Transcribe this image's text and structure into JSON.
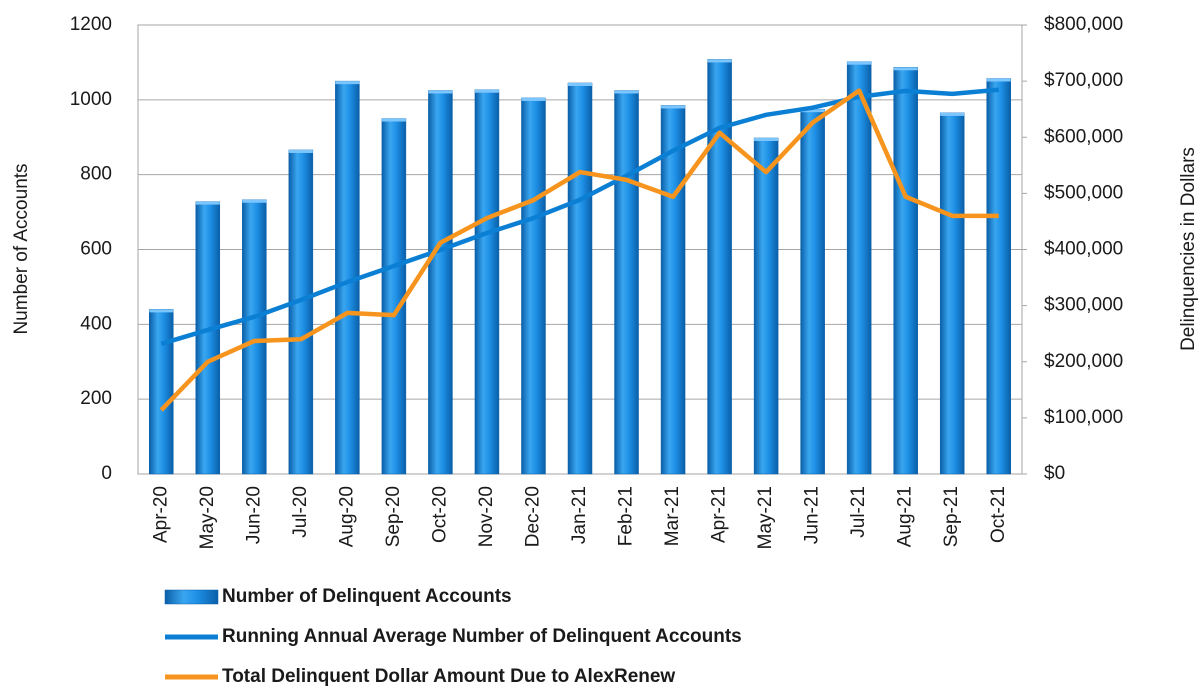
{
  "chart_data": {
    "type": "bar",
    "categories": [
      "Apr-20",
      "May-20",
      "Jun-20",
      "Jul-20",
      "Aug-20",
      "Sep-20",
      "Oct-20",
      "Nov-20",
      "Dec-20",
      "Jan-21",
      "Feb-21",
      "Mar-21",
      "Apr-21",
      "May-21",
      "Jun-21",
      "Jul-21",
      "Aug-21",
      "Sep-21",
      "Oct-21"
    ],
    "ylabel": "Number of Accounts",
    "y2label": "Delinquencies in Dollars",
    "ylim": [
      0,
      1200
    ],
    "yticks": [
      0,
      200,
      400,
      600,
      800,
      1000,
      1200
    ],
    "y2lim": [
      0,
      800000
    ],
    "y2ticks": [
      {
        "value": 0,
        "label": "$0"
      },
      {
        "value": 100000,
        "label": "$100,000"
      },
      {
        "value": 200000,
        "label": "$200,000"
      },
      {
        "value": 300000,
        "label": "$300,000"
      },
      {
        "value": 400000,
        "label": "$400,000"
      },
      {
        "value": 500000,
        "label": "$500,000"
      },
      {
        "value": 600000,
        "label": "$600,000"
      },
      {
        "value": 700000,
        "label": "$700,000"
      },
      {
        "value": 800000,
        "label": "$800,000"
      }
    ],
    "grid": true,
    "series": [
      {
        "name": "Number of Delinquent Accounts",
        "type": "bar",
        "color": "#1e90e6",
        "values": [
          440,
          728,
          733,
          866,
          1050,
          950,
          1025,
          1027,
          1005,
          1045,
          1025,
          985,
          1108,
          898,
          975,
          1102,
          1087,
          965,
          1057
        ]
      },
      {
        "name": "Running Annual Average Number of Delinquent Accounts",
        "type": "line",
        "color": "#0b7fd4",
        "values": [
          348,
          385,
          420,
          465,
          513,
          556,
          599,
          644,
          684,
          733,
          797,
          864,
          925,
          960,
          979,
          1008,
          1024,
          1016,
          1027
        ]
      },
      {
        "name": "Total Delinquent Dollar Amount Due to AlexRenew",
        "type": "line",
        "axis": "y2",
        "color": "#f7941d",
        "values": [
          114000,
          200000,
          237000,
          240000,
          287000,
          283000,
          412000,
          456000,
          488000,
          538000,
          524000,
          494000,
          608000,
          538000,
          626000,
          683000,
          494000,
          460000,
          460000
        ]
      }
    ]
  }
}
